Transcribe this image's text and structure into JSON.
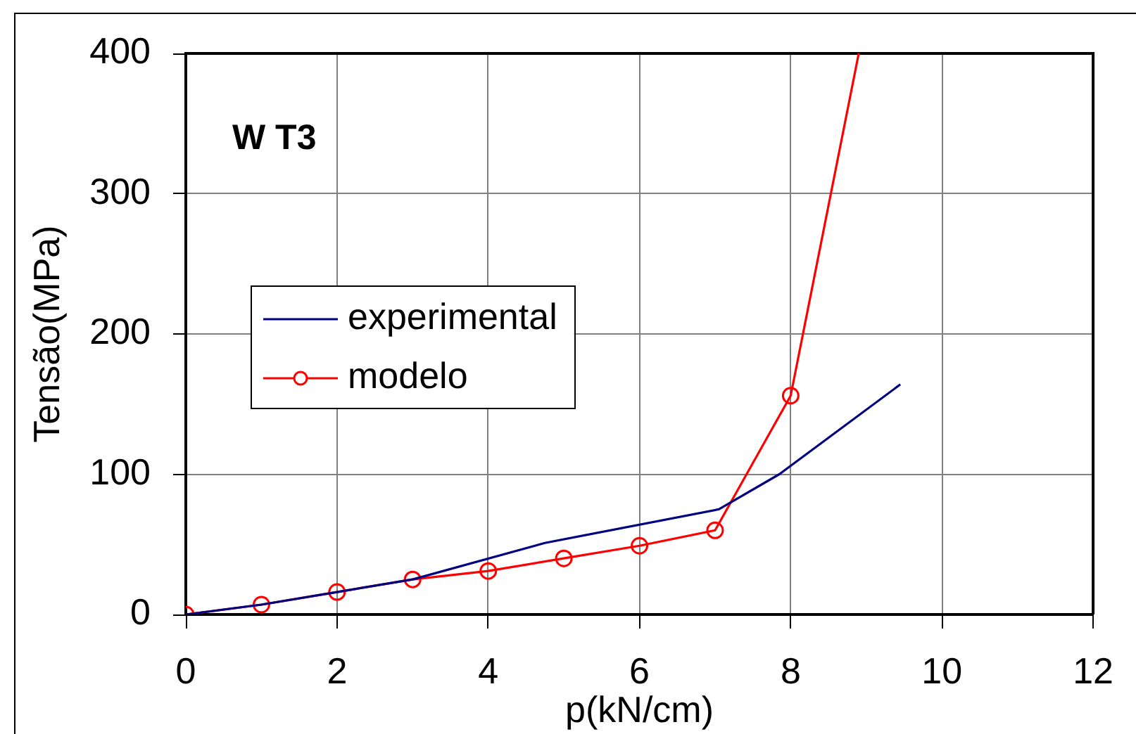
{
  "chart_data": {
    "type": "line",
    "xlabel": "p(kN/cm)",
    "ylabel": "Tensão(MPa)",
    "annotations": [
      "W T3"
    ],
    "xlim": [
      0,
      12
    ],
    "xticks": [
      0,
      2,
      4,
      6,
      8,
      10,
      12
    ],
    "ylim": [
      0,
      400
    ],
    "yticks": [
      0,
      100,
      200,
      300,
      400
    ],
    "grid": true,
    "legend": "left",
    "line_style": "solid",
    "series": [
      {
        "name": "experimental",
        "color": "#000080",
        "marker": "none",
        "x": [
          0,
          1,
          2,
          3,
          4.75,
          7.05,
          7.85,
          9.45
        ],
        "values": [
          0,
          7,
          16,
          25,
          51,
          75,
          100,
          164
        ]
      },
      {
        "name": "modelo",
        "color": "#ff0000",
        "marker": "circle",
        "x": [
          0,
          1,
          2,
          3,
          4,
          5,
          6,
          7,
          8,
          8.9
        ],
        "values": [
          0,
          7,
          16,
          25,
          31,
          40,
          49,
          60,
          156,
          400
        ]
      }
    ]
  }
}
